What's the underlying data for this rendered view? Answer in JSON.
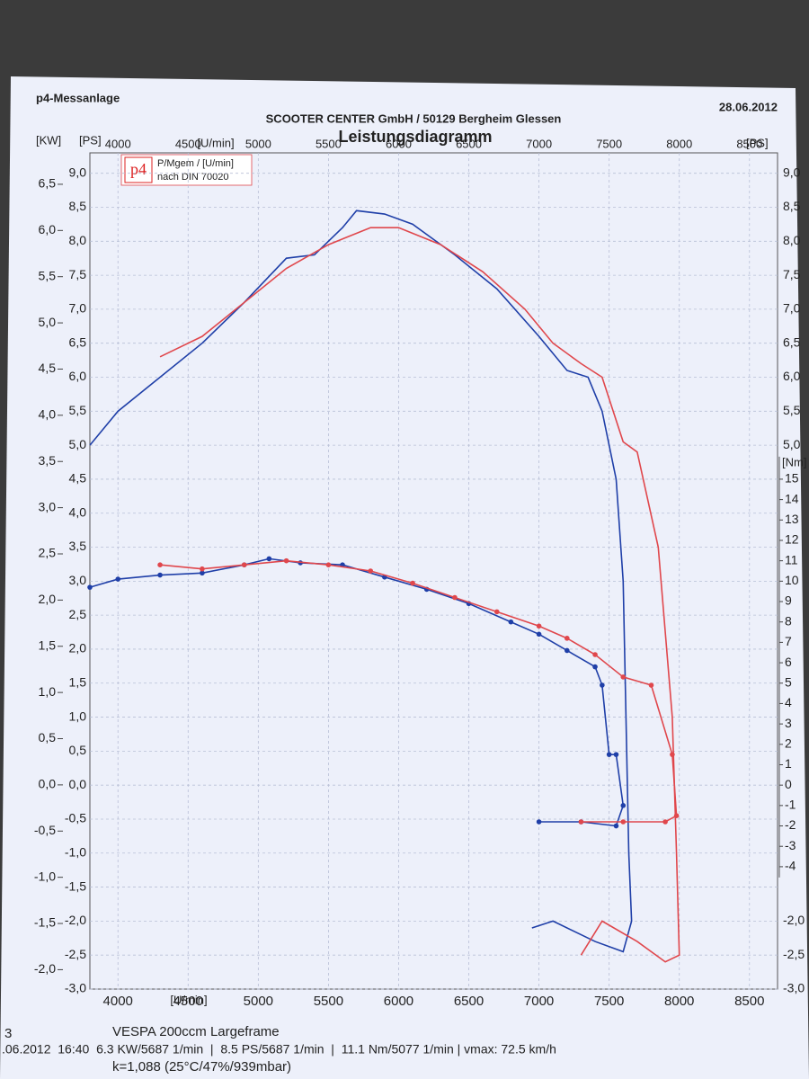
{
  "chart_data": {
    "type": "line",
    "header_left": "p4-Messanlage",
    "company": "SCOOTER CENTER GmbH / 50129 Bergheim Glessen",
    "date": "28.06.2012",
    "title": "Leistungsdiagramm",
    "kw_unit": "[KW]",
    "ps_unit": "[PS]",
    "x_unit": "[U/min]",
    "nm_unit": "[Nm]",
    "legend_logo": "p4",
    "legend_line1": "P/Mgem / [U/min]",
    "legend_line2": "nach DIN 70020",
    "footer_left": "3",
    "footer_line1": "VESPA 200ccm Largeframe",
    "footer_line2": ".06.2012  16:40  6.3 KW/5687 1/min  |  8.5 PS/5687 1/min  |  11.1 Nm/5077 1/min | vmax: 72.5 km/h",
    "footer_line3": "k=1,088 (25°C/47%/939mbar)",
    "xlim": [
      3800,
      8700
    ],
    "xticks": [
      4000,
      4500,
      5000,
      5500,
      6000,
      6500,
      7000,
      7500,
      8000,
      8500
    ],
    "ylim": [
      -3.0,
      9.3
    ],
    "yticks": [
      {
        "value": -3.0,
        "label": "-3,0"
      },
      {
        "value": -2.5,
        "label": "-2,5"
      },
      {
        "value": -2.0,
        "label": "-2,0"
      },
      {
        "value": -1.5,
        "label": "-1,5"
      },
      {
        "value": -1.0,
        "label": "-1,0"
      },
      {
        "value": -0.5,
        "label": "-0,5"
      },
      {
        "value": 0.0,
        "label": "0,0"
      },
      {
        "value": 0.5,
        "label": "0,5"
      },
      {
        "value": 1.0,
        "label": "1,0"
      },
      {
        "value": 1.5,
        "label": "1,5"
      },
      {
        "value": 2.0,
        "label": "2,0"
      },
      {
        "value": 2.5,
        "label": "2,5"
      },
      {
        "value": 3.0,
        "label": "3,0"
      },
      {
        "value": 3.5,
        "label": "3,5"
      },
      {
        "value": 4.0,
        "label": "4,0"
      },
      {
        "value": 4.5,
        "label": "4,5"
      },
      {
        "value": 5.0,
        "label": "5,0"
      },
      {
        "value": 5.5,
        "label": "5,5"
      },
      {
        "value": 6.0,
        "label": "6,0"
      },
      {
        "value": 6.5,
        "label": "6,5"
      },
      {
        "value": 7.0,
        "label": "7,0"
      },
      {
        "value": 7.5,
        "label": "7,5"
      },
      {
        "value": 8.0,
        "label": "8,0"
      },
      {
        "value": 8.5,
        "label": "8,5"
      },
      {
        "value": 9.0,
        "label": "9,0"
      }
    ],
    "y3lim": [
      -2.21,
      6.84
    ],
    "y3ticks": [
      {
        "value": -2.0,
        "label": "-2,0"
      },
      {
        "value": -1.5,
        "label": "-1,5"
      },
      {
        "value": -1.0,
        "label": "-1,0"
      },
      {
        "value": -0.5,
        "label": "-0,5"
      },
      {
        "value": 0.0,
        "label": "0,0"
      },
      {
        "value": 0.5,
        "label": "0,5"
      },
      {
        "value": 1.0,
        "label": "1,0"
      },
      {
        "value": 1.5,
        "label": "1,5"
      },
      {
        "value": 2.0,
        "label": "2,0"
      },
      {
        "value": 2.5,
        "label": "2,5"
      },
      {
        "value": 3.0,
        "label": "3,0"
      },
      {
        "value": 3.5,
        "label": "3,5"
      },
      {
        "value": 4.0,
        "label": "4,0"
      },
      {
        "value": 4.5,
        "label": "4,5"
      },
      {
        "value": 5.0,
        "label": "5,0"
      },
      {
        "value": 5.5,
        "label": "5,5"
      },
      {
        "value": 6.0,
        "label": "6,0"
      },
      {
        "value": 6.5,
        "label": "6,5"
      }
    ],
    "y2lim": [
      -10,
      31
    ],
    "y2ticks": [
      -4,
      -3,
      -2,
      -1,
      0,
      1,
      2,
      3,
      4,
      5,
      6,
      7,
      8,
      9,
      10,
      11,
      12,
      13,
      14,
      15
    ],
    "grid": true,
    "series": [
      {
        "color": "#1f3fa8",
        "axis": "y",
        "markers": false,
        "x": [
          3800,
          4000,
          4300,
          4600,
          4900,
          5200,
          5400,
          5600,
          5700,
          5900,
          6100,
          6400,
          6700,
          7000,
          7200,
          7350,
          7450,
          7550,
          7600,
          7620,
          7640,
          7660,
          7600,
          7400,
          7100,
          6950
        ],
        "values": [
          5.0,
          5.5,
          6.0,
          6.5,
          7.1,
          7.75,
          7.8,
          8.2,
          8.45,
          8.4,
          8.25,
          7.8,
          7.3,
          6.6,
          6.1,
          6.0,
          5.5,
          4.5,
          3.0,
          1.0,
          -1.0,
          -2.0,
          -2.45,
          -2.3,
          -2.0,
          -2.1
        ]
      },
      {
        "color": "#e0474c",
        "axis": "y",
        "markers": false,
        "x": [
          4300,
          4600,
          4900,
          5200,
          5500,
          5800,
          6000,
          6300,
          6600,
          6900,
          7100,
          7300,
          7450,
          7600,
          7700,
          7850,
          7950,
          7980,
          8000,
          7900,
          7700,
          7450,
          7300
        ],
        "values": [
          6.3,
          6.6,
          7.1,
          7.6,
          7.95,
          8.2,
          8.2,
          7.95,
          7.55,
          7.0,
          6.5,
          6.2,
          6.0,
          5.05,
          4.9,
          3.5,
          1.0,
          -1.0,
          -2.5,
          -2.6,
          -2.3,
          -2.0,
          -2.5
        ]
      },
      {
        "color": "#1f3fa8",
        "axis": "y2",
        "markers": true,
        "x": [
          3800,
          4000,
          4300,
          4600,
          4900,
          5077,
          5300,
          5600,
          5900,
          6200,
          6500,
          6800,
          7000,
          7200,
          7400,
          7450,
          7500,
          7550,
          7600,
          7550,
          7300,
          7000
        ],
        "values": [
          9.7,
          10.1,
          10.3,
          10.4,
          10.8,
          11.1,
          10.9,
          10.8,
          10.2,
          9.6,
          8.9,
          8.0,
          7.4,
          6.6,
          5.8,
          4.9,
          1.5,
          1.5,
          -1.0,
          -2.0,
          -1.8,
          -1.8
        ]
      },
      {
        "color": "#e0474c",
        "axis": "y2",
        "markers": true,
        "x": [
          4300,
          4600,
          4900,
          5200,
          5500,
          5800,
          6100,
          6400,
          6700,
          7000,
          7200,
          7400,
          7600,
          7800,
          7950,
          7980,
          7900,
          7600,
          7300
        ],
        "values": [
          10.8,
          10.6,
          10.8,
          11.0,
          10.8,
          10.5,
          9.9,
          9.2,
          8.5,
          7.8,
          7.2,
          6.4,
          5.3,
          4.9,
          1.5,
          -1.5,
          -1.8,
          -1.8,
          -1.8
        ]
      }
    ]
  }
}
